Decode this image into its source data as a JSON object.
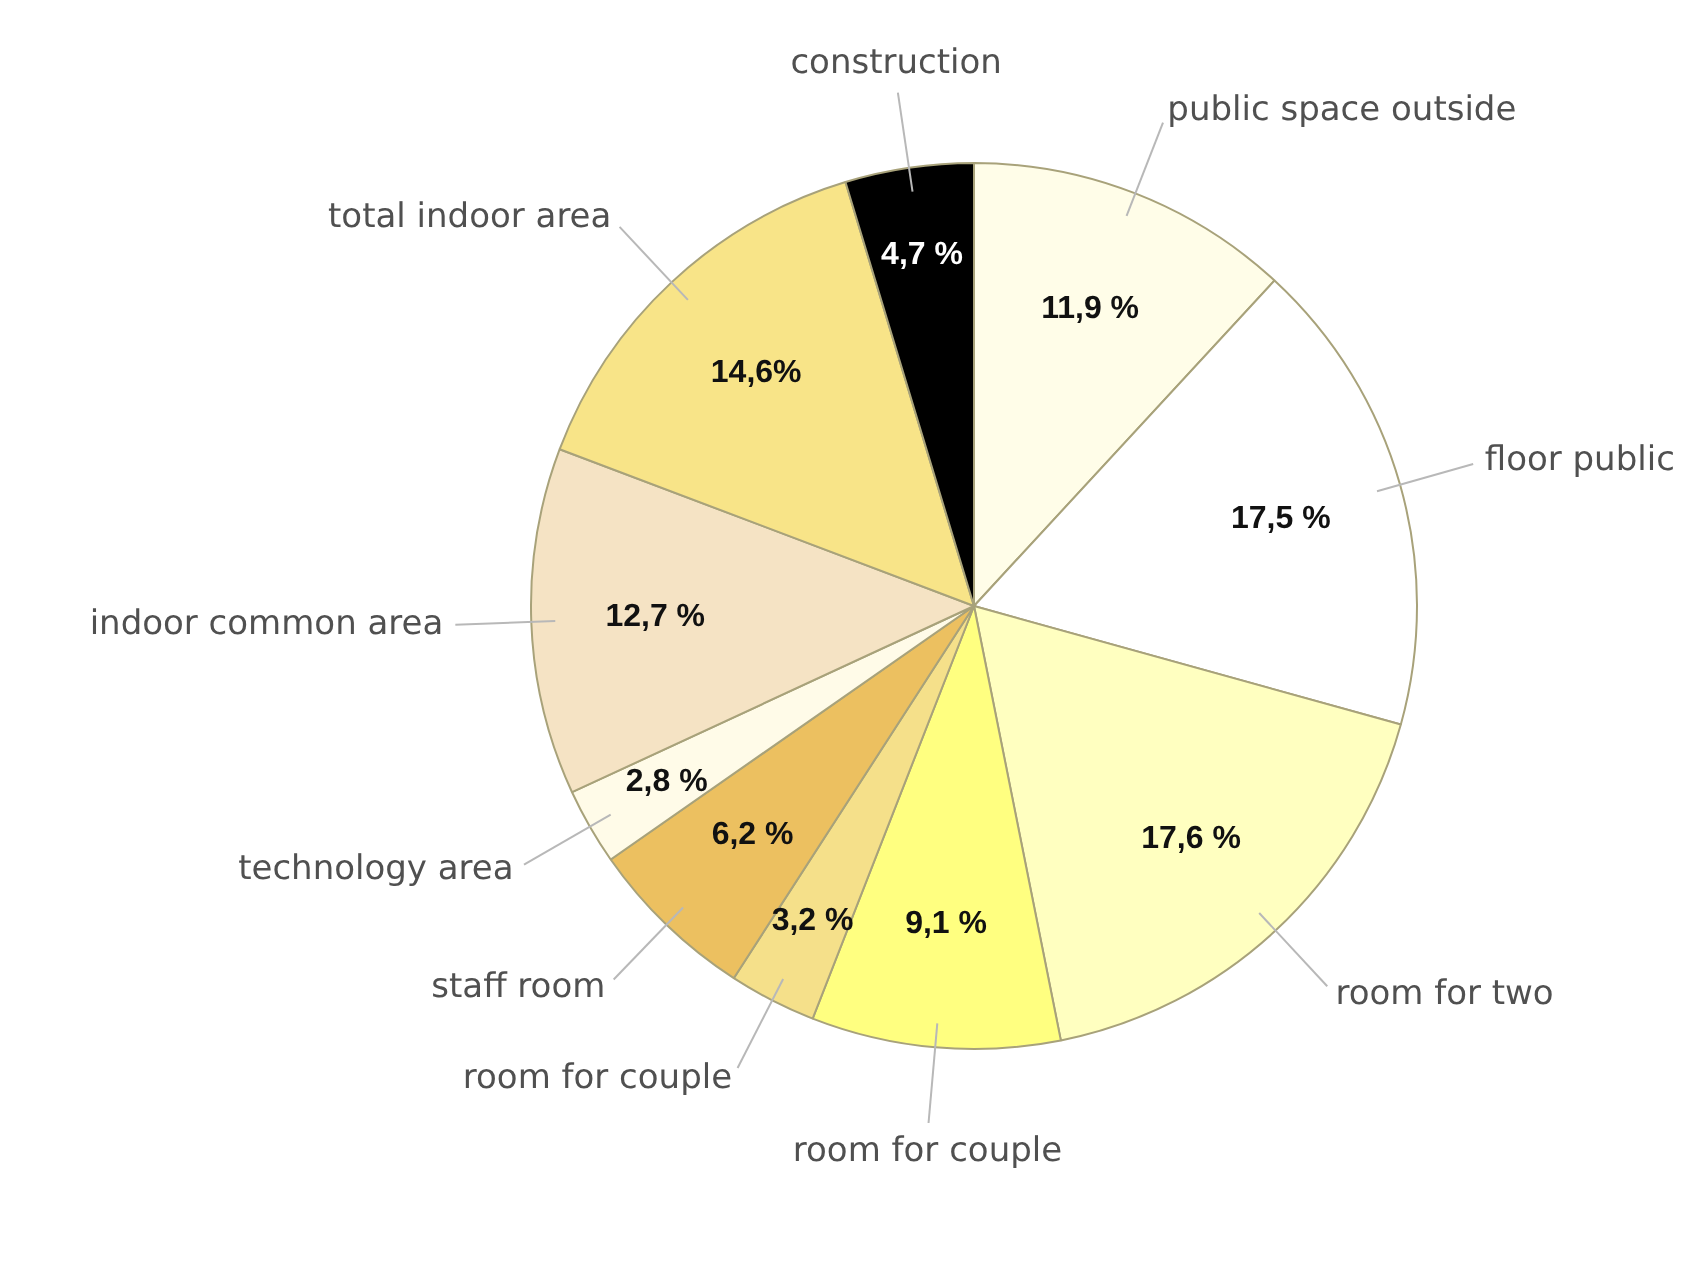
{
  "chart_data": {
    "type": "pie",
    "categories": [
      "public space outside",
      "floor public",
      "room for two",
      "room for couple",
      "room for couple",
      "staff room",
      "technology area",
      "indoor common area",
      "total indoor area",
      "construction"
    ],
    "values": [
      11.9,
      17.5,
      17.6,
      9.1,
      3.2,
      6.2,
      2.8,
      12.7,
      14.6,
      4.7
    ],
    "colors": [
      "#fffde8",
      "#ffffff",
      "#ffffc0",
      "#ffff80",
      "#f5e08a",
      "#ecc060",
      "#fffbe8",
      "#f5e3c4",
      "#f8e488",
      "#000000"
    ],
    "value_labels": [
      "11,9 %",
      "17,5 %",
      "17,6 %",
      "9,1 %",
      "3,2 %",
      "6,2 %",
      "2,8 %",
      "12,7 %",
      "14,6%",
      "4,7 %"
    ],
    "legend": false
  }
}
